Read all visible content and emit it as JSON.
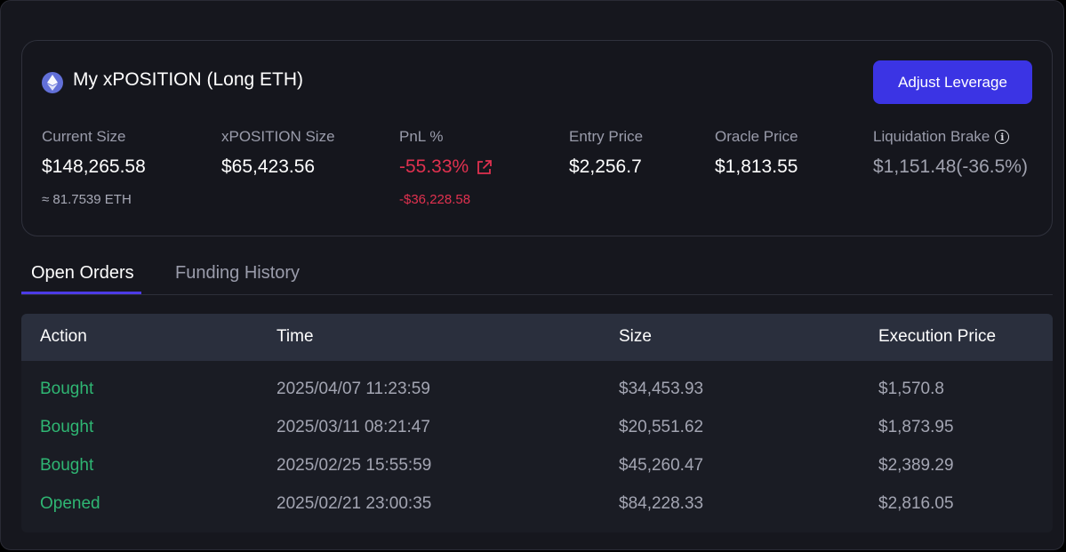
{
  "position": {
    "title": "My xPOSITION (Long ETH)",
    "adjust_button": "Adjust Leverage",
    "stats": {
      "current_size": {
        "label": "Current Size",
        "value": "$148,265.58",
        "sub": "≈ 81.7539 ETH"
      },
      "xposition_size": {
        "label": "xPOSITION Size",
        "value": "$65,423.56"
      },
      "pnl": {
        "label": "PnL %",
        "value": "-55.33%",
        "sub": "-$36,228.58"
      },
      "entry_price": {
        "label": "Entry Price",
        "value": "$2,256.7"
      },
      "oracle_price": {
        "label": "Oracle Price",
        "value": "$1,813.55"
      },
      "liquidation_brake": {
        "label": "Liquidation Brake",
        "value": "$1,151.48(-36.5%)"
      }
    }
  },
  "tabs": [
    {
      "label": "Open Orders",
      "active": true
    },
    {
      "label": "Funding History",
      "active": false
    }
  ],
  "orders_table": {
    "columns": [
      "Action",
      "Time",
      "Size",
      "Execution Price"
    ],
    "rows": [
      {
        "action": "Bought",
        "time": "2025/04/07 11:23:59",
        "size": "$34,453.93",
        "price": "$1,570.8"
      },
      {
        "action": "Bought",
        "time": "2025/03/11 08:21:47",
        "size": "$20,551.62",
        "price": "$1,873.95"
      },
      {
        "action": "Bought",
        "time": "2025/02/25 15:55:59",
        "size": "$45,260.47",
        "price": "$2,389.29"
      },
      {
        "action": "Opened",
        "time": "2025/02/21 23:00:35",
        "size": "$84,228.33",
        "price": "$2,816.05"
      }
    ]
  },
  "icons": {
    "eth": "ethereum-icon",
    "pnl_link": "external-link-icon",
    "info": "info-icon"
  },
  "colors": {
    "accent": "#3b34e4",
    "negative": "#e0314f",
    "positive": "#2fb673",
    "background": "#16171e"
  }
}
